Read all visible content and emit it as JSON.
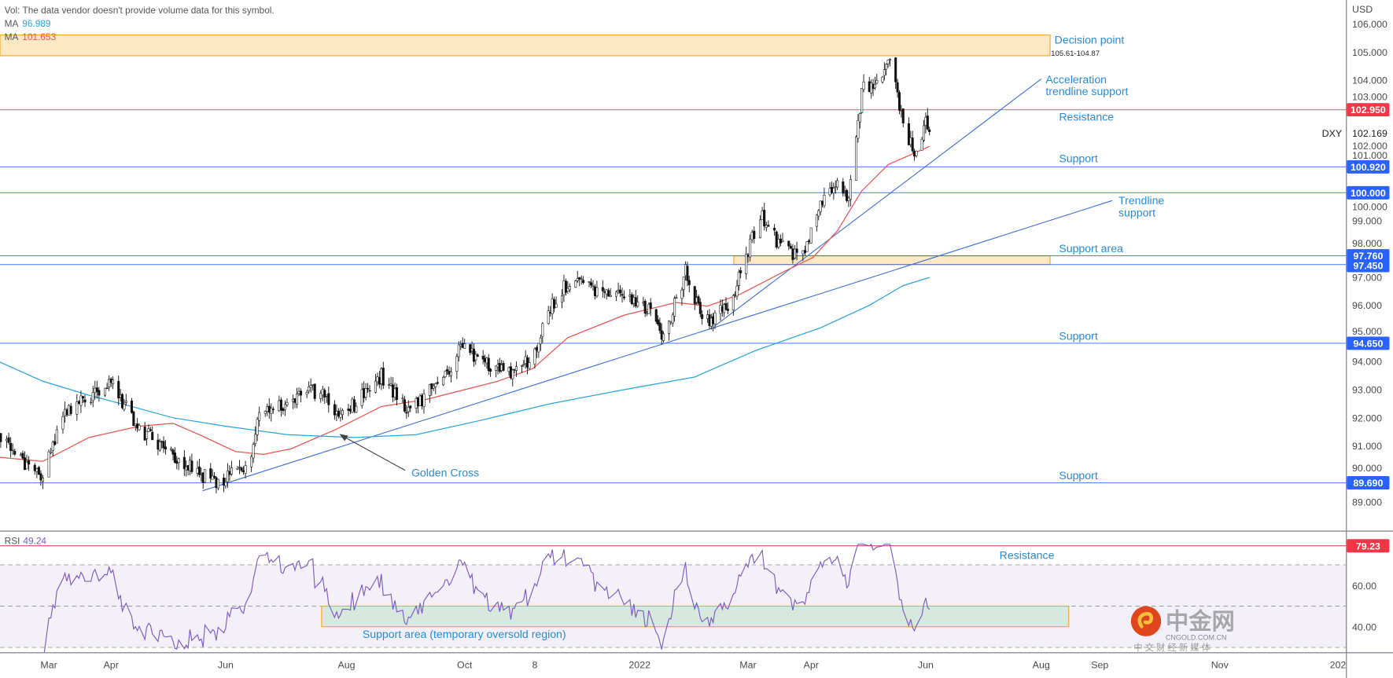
{
  "legend": {
    "vol_note": "Vol: The data vendor doesn't provide volume data for this symbol.",
    "ma1_label": "MA",
    "ma1_value": "96.989",
    "ma2_label": "MA",
    "ma2_value": "101.653"
  },
  "symbol": {
    "name": "DXY",
    "last": "102.169",
    "currency": "USD"
  },
  "colors": {
    "support": "#2962ff",
    "resistance": "#f23645",
    "ma_fast": "#ef5350",
    "ma_slow": "#29a3e0",
    "rsi": "#7e57c2",
    "zone_fill": "#ffe8c4",
    "zone_border": "#f5a623",
    "annotation_text": "#2a8ad8"
  },
  "annotations": {
    "decision_point": "Decision point",
    "decision_range": "105.61-104.87",
    "acceleration": [
      "Acceleration",
      "trendline support"
    ],
    "resistance": "Resistance",
    "support_1": "Support",
    "trendline": [
      "Trendline",
      "support"
    ],
    "support_area": "Support area",
    "support_2": "Support",
    "support_3": "Support",
    "golden_cross": "Golden Cross",
    "rsi_resistance": "Resistance",
    "rsi_support_area": "Support area (temporary oversold region)"
  },
  "watermark": {
    "brand": "中金网",
    "domain": "CNGOLD.COM.CN",
    "tagline": "中 文 财 经 新 媒 体"
  },
  "chart_data": [
    {
      "type": "candlestick",
      "title": "DXY",
      "y_axis": {
        "unit": "USD",
        "range": [
          88.2,
          106.7
        ],
        "ticks": [
          "106.000",
          "105.000",
          "104.000",
          "103.000",
          "102.000",
          "101.000",
          "100.000",
          "99.000",
          "98.000",
          "97.000",
          "96.000",
          "95.000",
          "94.000",
          "93.000",
          "92.000",
          "91.000",
          "90.000",
          "89.000"
        ]
      },
      "x_axis": {
        "ticks": [
          {
            "label": "Mar",
            "date": "2021-03-01"
          },
          {
            "label": "Apr",
            "date": "2021-04-01"
          },
          {
            "label": "Jun",
            "date": "2021-06-01"
          },
          {
            "label": "Aug",
            "date": "2021-08-01"
          },
          {
            "label": "Oct",
            "date": "2021-10-01"
          },
          {
            "label": "8",
            "date": "2021-11-08"
          },
          {
            "label": "2022",
            "date": "2022-01-01"
          },
          {
            "label": "Mar",
            "date": "2022-03-01"
          },
          {
            "label": "Apr",
            "date": "2022-04-01"
          },
          {
            "label": "Jun",
            "date": "2022-06-01"
          },
          {
            "label": "Aug",
            "date": "2022-08-01"
          },
          {
            "label": "Sep",
            "date": "2022-09-01"
          },
          {
            "label": "Nov",
            "date": "2022-11-01"
          },
          {
            "label": "202",
            "date": "2023-01-01"
          }
        ]
      },
      "price_path": [
        [
          "2021-02-04",
          91.2
        ],
        [
          "2021-02-26",
          89.9
        ],
        [
          "2021-03-08",
          92.0
        ],
        [
          "2021-03-31",
          93.3
        ],
        [
          "2021-04-16",
          91.6
        ],
        [
          "2021-05-04",
          90.7
        ],
        [
          "2021-05-25",
          89.7
        ],
        [
          "2021-06-12",
          90.2
        ],
        [
          "2021-06-18",
          92.2
        ],
        [
          "2021-07-18",
          93.0
        ],
        [
          "2021-07-29",
          92.0
        ],
        [
          "2021-08-19",
          93.5
        ],
        [
          "2021-09-02",
          92.3
        ],
        [
          "2021-09-20",
          93.3
        ],
        [
          "2021-09-29",
          94.5
        ],
        [
          "2021-10-26",
          93.5
        ],
        [
          "2021-11-09",
          94.3
        ],
        [
          "2021-11-14",
          95.8
        ],
        [
          "2021-11-25",
          96.8
        ],
        [
          "2021-12-24",
          96.3
        ],
        [
          "2022-01-10",
          95.7
        ],
        [
          "2022-01-14",
          94.8
        ],
        [
          "2022-01-26",
          97.2
        ],
        [
          "2022-02-05",
          95.3
        ],
        [
          "2022-02-19",
          96.0
        ],
        [
          "2022-03-01",
          97.9
        ],
        [
          "2022-03-07",
          99.3
        ],
        [
          "2022-03-16",
          98.2
        ],
        [
          "2022-03-27",
          97.6
        ],
        [
          "2022-04-05",
          99.5
        ],
        [
          "2022-04-16",
          100.5
        ],
        [
          "2022-04-21",
          99.8
        ],
        [
          "2022-04-26",
          102.5
        ],
        [
          "2022-04-29",
          104.0
        ],
        [
          "2022-05-05",
          103.6
        ],
        [
          "2022-05-12",
          104.9
        ],
        [
          "2022-05-17",
          103.5
        ],
        [
          "2022-05-22",
          101.9
        ],
        [
          "2022-05-29",
          101.3
        ],
        [
          "2022-05-31",
          102.6
        ],
        [
          "2022-06-03",
          102.169
        ]
      ],
      "moving_averages": [
        {
          "name": "MA",
          "value": 101.653,
          "color": "#ef5350",
          "points": [
            [
              "2021-02-04",
              90.6
            ],
            [
              "2021-02-26",
              90.45
            ],
            [
              "2021-03-21",
              91.3
            ],
            [
              "2021-04-16",
              91.7
            ],
            [
              "2021-05-04",
              91.8
            ],
            [
              "2021-05-18",
              91.4
            ],
            [
              "2021-06-06",
              90.8
            ],
            [
              "2021-06-20",
              90.7
            ],
            [
              "2021-07-04",
              90.9
            ],
            [
              "2021-07-27",
              91.6
            ],
            [
              "2021-08-19",
              92.4
            ],
            [
              "2021-09-11",
              92.65
            ],
            [
              "2021-10-19",
              93.3
            ],
            [
              "2021-11-07",
              93.75
            ],
            [
              "2021-11-25",
              94.85
            ],
            [
              "2021-12-24",
              95.65
            ],
            [
              "2022-01-21",
              96.1
            ],
            [
              "2022-02-07",
              95.97
            ],
            [
              "2022-02-25",
              96.4
            ],
            [
              "2022-03-16",
              97.1
            ],
            [
              "2022-04-02",
              97.7
            ],
            [
              "2022-04-15",
              98.65
            ],
            [
              "2022-04-28",
              100.07
            ],
            [
              "2022-05-12",
              101.0
            ],
            [
              "2022-06-03",
              101.65
            ]
          ]
        },
        {
          "name": "MA",
          "value": 96.989,
          "color": "#29a3e0",
          "points": [
            [
              "2021-02-04",
              94.0
            ],
            [
              "2021-02-26",
              93.3
            ],
            [
              "2021-03-21",
              92.8
            ],
            [
              "2021-04-12",
              92.4
            ],
            [
              "2021-05-04",
              92.0
            ],
            [
              "2021-06-01",
              91.7
            ],
            [
              "2021-07-02",
              91.4
            ],
            [
              "2021-08-05",
              91.3
            ],
            [
              "2021-09-06",
              91.4
            ],
            [
              "2021-10-09",
              91.9
            ],
            [
              "2021-11-16",
              92.5
            ],
            [
              "2021-12-24",
              93.0
            ],
            [
              "2022-01-31",
              93.45
            ],
            [
              "2022-03-05",
              94.4
            ],
            [
              "2022-04-06",
              95.2
            ],
            [
              "2022-05-02",
              96.0
            ],
            [
              "2022-05-20",
              96.7
            ],
            [
              "2022-06-03",
              96.99
            ]
          ]
        }
      ],
      "levels": [
        {
          "price": 102.95,
          "label": "102.950",
          "color": "#f23645"
        },
        {
          "price": 100.92,
          "label": "100.920",
          "color": "#2962ff"
        },
        {
          "price": 100.0,
          "label": "100.000",
          "color": "#2962ff"
        },
        {
          "price": 97.76,
          "label": "97.760",
          "color": "#2962ff"
        },
        {
          "price": 97.45,
          "label": "97.450",
          "color": "#2962ff"
        },
        {
          "price": 94.65,
          "label": "94.650",
          "color": "#2962ff"
        },
        {
          "price": 89.69,
          "label": "89.690",
          "color": "#2962ff"
        }
      ],
      "zones": [
        {
          "name": "Decision point",
          "top": 105.61,
          "bottom": 104.87
        },
        {
          "name": "Support area",
          "top": 97.76,
          "bottom": 97.45
        }
      ]
    },
    {
      "type": "line",
      "title": "RSI",
      "last_value": "49.24",
      "y_axis": {
        "ticks": [
          "60.00",
          "40.00"
        ],
        "bands": [
          70,
          50,
          30
        ]
      },
      "resistance": {
        "value": 79.23,
        "label": "79.23"
      },
      "support_zone": {
        "top": 50,
        "bottom": 40
      }
    }
  ]
}
